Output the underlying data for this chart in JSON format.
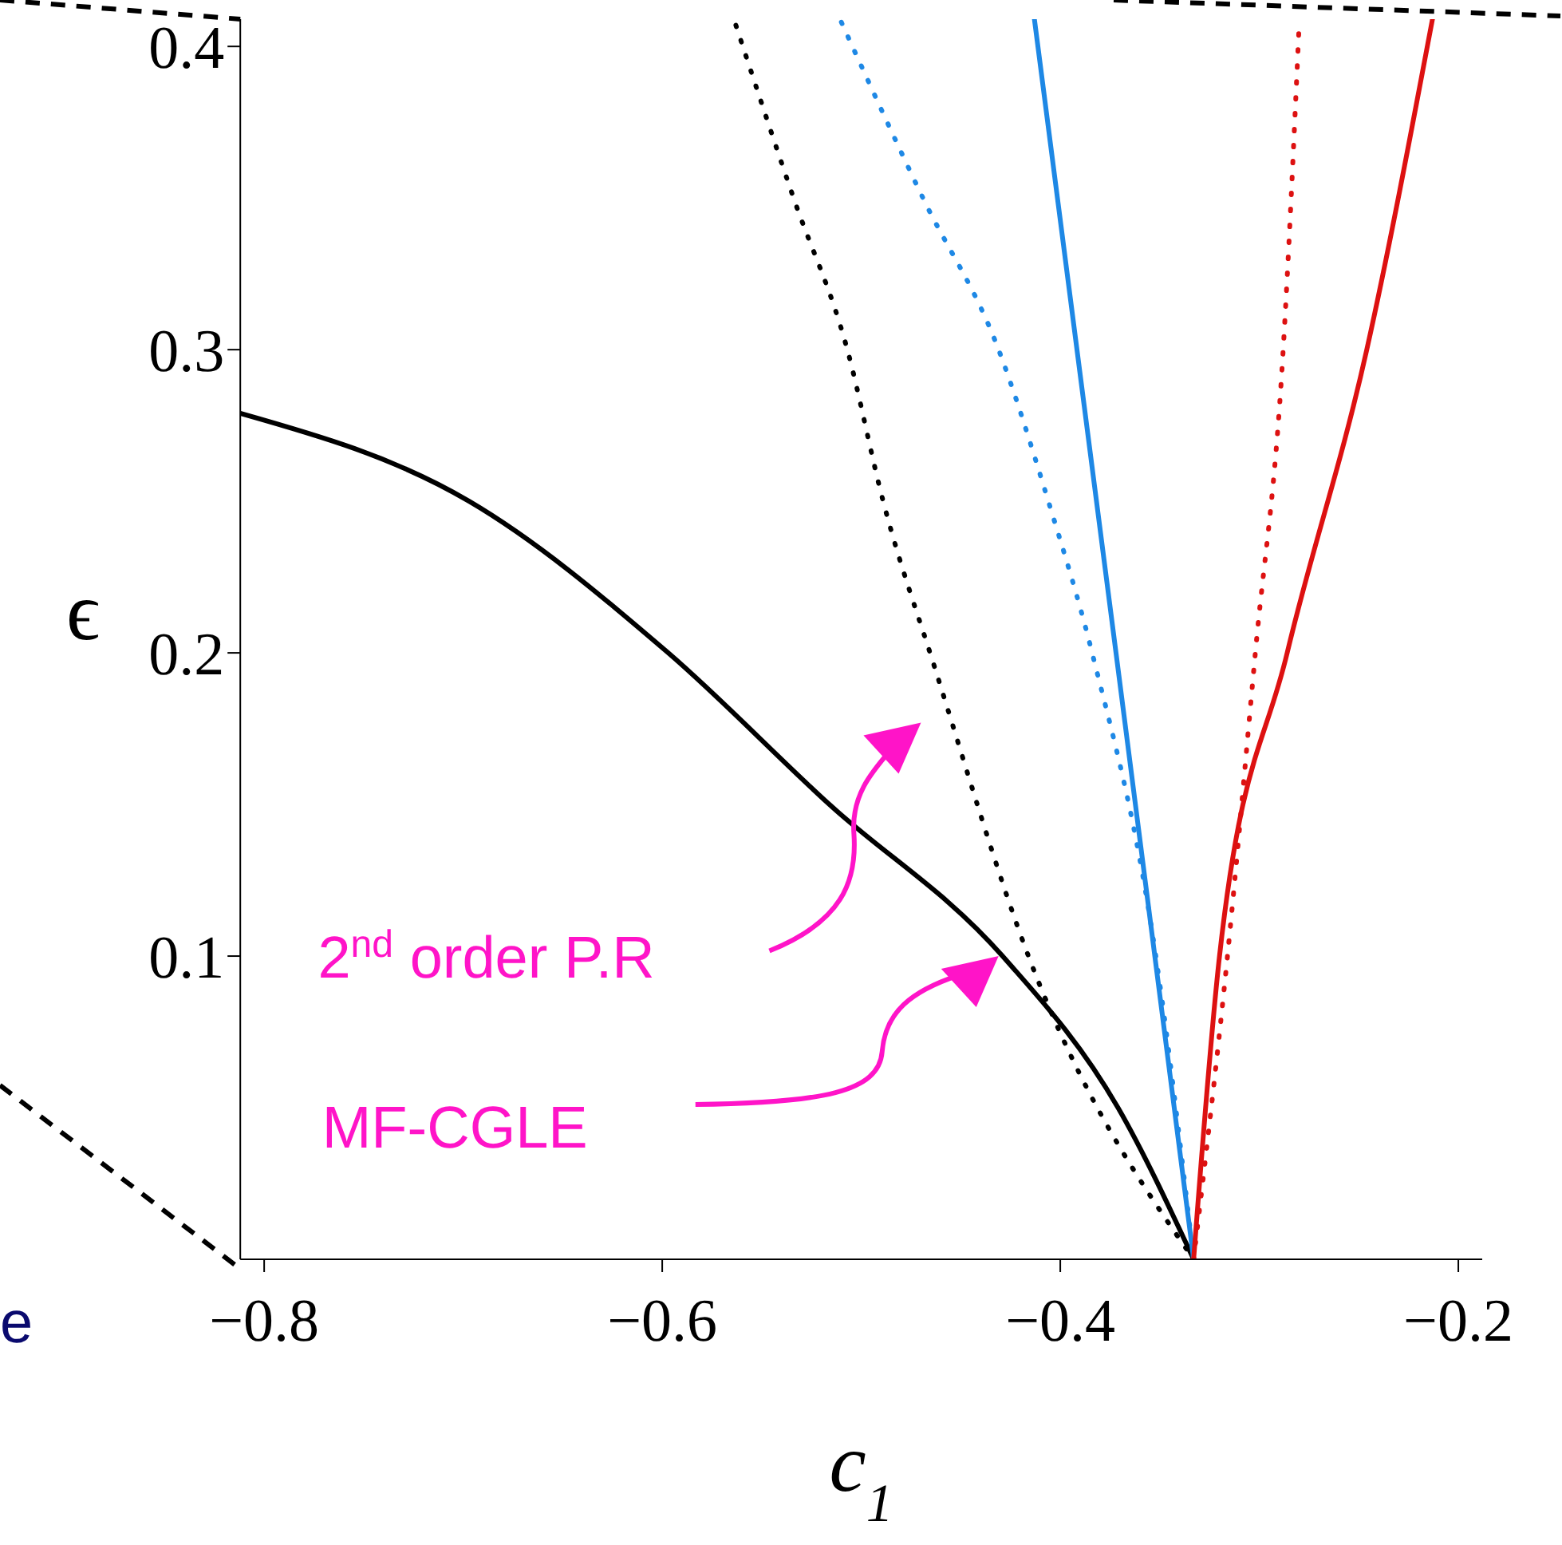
{
  "chart_data": {
    "type": "line",
    "xlabel": "c$_{1}$",
    "ylabel": "ϵ",
    "xlim": [
      -0.812,
      -0.188
    ],
    "ylim": [
      0,
      0.409
    ],
    "xticks": [
      {
        "value": -0.8,
        "label": "−0.8"
      },
      {
        "value": -0.6,
        "label": "−0.6"
      },
      {
        "value": -0.4,
        "label": "−0.4"
      },
      {
        "value": -0.2,
        "label": "−0.2"
      }
    ],
    "yticks": [
      0.1,
      0.2,
      0.3,
      0.4
    ],
    "marker": "none",
    "series": [
      {
        "color": "#000000",
        "line_style": "solid",
        "x": [
          -0.812,
          -0.697,
          -0.597,
          -0.516,
          -0.429,
          -0.371,
          -0.333
        ],
        "values": [
          0.279,
          0.25,
          0.2,
          0.15,
          0.1,
          0.05,
          0
        ]
      },
      {
        "color": "#000000",
        "line_style": "dotted",
        "x": [
          -0.563,
          -0.534,
          -0.507,
          -0.489,
          -0.463,
          -0.416,
          -0.333
        ],
        "values": [
          0.407,
          0.35,
          0.3,
          0.25,
          0.195,
          0.1,
          0
        ]
      },
      {
        "color": "#1e88e5",
        "line_style": "dotted",
        "x": [
          -0.51,
          -0.469,
          -0.431,
          -0.406,
          -0.384,
          -0.352,
          -0.333
        ],
        "values": [
          0.408,
          0.35,
          0.3,
          0.25,
          0.2,
          0.1,
          0
        ]
      },
      {
        "color": "#1e88e5",
        "line_style": "solid",
        "x": [
          -0.413,
          -0.372,
          -0.333
        ],
        "values": [
          0.409,
          0.2,
          0
        ]
      },
      {
        "color": "#dd1111",
        "line_style": "dotted",
        "x": [
          -0.333,
          -0.316,
          -0.302,
          -0.288,
          -0.28
        ],
        "values": [
          0,
          0.1,
          0.2,
          0.3,
          0.407
        ]
      },
      {
        "color": "#dd1111",
        "line_style": "solid",
        "x": [
          -0.333,
          -0.32,
          -0.286,
          -0.246,
          -0.213
        ],
        "values": [
          0,
          0.1,
          0.2,
          0.3,
          0.409
        ]
      }
    ],
    "annotations": [
      "2$^{nd}$ order P.R",
      "MF-CGLE",
      "e"
    ]
  }
}
